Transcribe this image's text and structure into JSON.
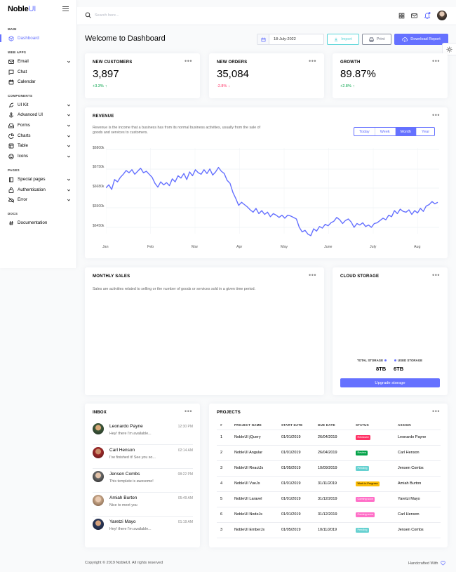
{
  "brand": {
    "name": "Noble",
    "suffix": "UI"
  },
  "sidebar": {
    "sections": {
      "main": "MAIN",
      "web_apps": "WEB APPS",
      "components": "COMPONENTS",
      "pages": "PAGES",
      "docs": "DOCS"
    },
    "items": {
      "dashboard": "Dashboard",
      "email": "Email",
      "chat": "Chat",
      "calendar": "Calendar",
      "ui_kit": "UI Kit",
      "advanced_ui": "Advanced UI",
      "forms": "Forms",
      "charts": "Charts",
      "table": "Table",
      "icons": "Icons",
      "special_pages": "Special pages",
      "authentication": "Authentication",
      "error": "Error",
      "documentation": "Documentation"
    }
  },
  "topbar": {
    "search_placeholder": "Search here..."
  },
  "header": {
    "title": "Welcome to Dashboard",
    "date": "18-July-2022",
    "import": "Import",
    "print": "Print",
    "download": "Download Report"
  },
  "stats": {
    "new_customers": {
      "title": "NEW CUSTOMERS",
      "value": "3,897",
      "delta": "+3.3%"
    },
    "new_orders": {
      "title": "NEW ORDERS",
      "value": "35,084",
      "delta": "-2.8%"
    },
    "growth": {
      "title": "GROWTH",
      "value": "89.87%",
      "delta": "+2.8%"
    }
  },
  "revenue": {
    "title": "REVENUE",
    "description_line1": "Revenue is the income that a business has from its normal business activities, usually from the sale of",
    "description_line2": "goods and services to customers.",
    "periods": {
      "today": "Today",
      "week": "Week",
      "month": "Month",
      "year": "Year"
    },
    "y_ticks": [
      "$6800k",
      "$6750k",
      "$6680k",
      "$6500k",
      "$6450k"
    ],
    "x_ticks": [
      "Jan",
      "Feb",
      "Mar",
      "Apr",
      "May",
      "June",
      "July",
      "Aug"
    ]
  },
  "chart_data": {
    "type": "line",
    "title": "REVENUE",
    "xlabel": "",
    "ylabel": "",
    "y_ticks": [
      "$6800k",
      "$6750k",
      "$6680k",
      "$6500k",
      "$6450k"
    ],
    "x_ticks": [
      "Jan",
      "Feb",
      "Mar",
      "Apr",
      "May",
      "June",
      "July",
      "Aug"
    ],
    "values": [
      0.66,
      0.7,
      0.64,
      0.77,
      0.74,
      0.8,
      0.84,
      0.89,
      0.86,
      0.9,
      0.84,
      0.88,
      0.92,
      0.86,
      0.88,
      0.84,
      0.8,
      0.72,
      0.67,
      0.74,
      0.7,
      0.73,
      0.69,
      0.78,
      0.74,
      0.82,
      0.79,
      0.85,
      0.77,
      0.87,
      0.82,
      0.9,
      0.86,
      0.84,
      0.9,
      0.85,
      0.91,
      0.83,
      0.87,
      0.93,
      0.88,
      0.85,
      0.76,
      0.72,
      0.6,
      0.52,
      0.43,
      0.47,
      0.44,
      0.41,
      0.37,
      0.34,
      0.39,
      0.32,
      0.36,
      0.31,
      0.34,
      0.28,
      0.32,
      0.3,
      0.27,
      0.3,
      0.26,
      0.3,
      0.29,
      0.27,
      0.25,
      0.14,
      0.08,
      0.1,
      0.05,
      0.03,
      0.12,
      0.09,
      0.15,
      0.13,
      0.18,
      0.16,
      0.2,
      0.22,
      0.27,
      0.24,
      0.19,
      0.23,
      0.25,
      0.21,
      0.14,
      0.19,
      0.17,
      0.2,
      0.15,
      0.17,
      0.14,
      0.19,
      0.2,
      0.23,
      0.26,
      0.24,
      0.3,
      0.28,
      0.36,
      0.32,
      0.38,
      0.35,
      0.34,
      0.37,
      0.31,
      0.36,
      0.33,
      0.39,
      0.35,
      0.42,
      0.44,
      0.48,
      0.45,
      0.47
    ],
    "ylim": [
      0,
      1
    ],
    "grid": true
  },
  "monthly_sales": {
    "title": "MONTHLY SALES",
    "description": "Sales are activities related to selling or the number of goods or services sold in a given time period."
  },
  "cloud_storage": {
    "title": "CLOUD STORAGE",
    "total_label": "TOTAL STORAGE",
    "used_label": "USED STORAGE",
    "total_value": "8TB",
    "used_value": "6TB",
    "button": "Upgrade storage"
  },
  "inbox": {
    "title": "INBOX",
    "messages": [
      {
        "name": "Leonardo Payne",
        "text": "Hey! there I'm available...",
        "time": "12:30 PM"
      },
      {
        "name": "Carl Henson",
        "text": "I've finished it! See you so...",
        "time": "02:14 AM"
      },
      {
        "name": "Jensen Combs",
        "text": "This template is awesome!",
        "time": "08:22 PM"
      },
      {
        "name": "Amiah Burton",
        "text": "Nice to meet you",
        "time": "05:49 AM"
      },
      {
        "name": "Yaretzi Mayo",
        "text": "Hey! there I'm available...",
        "time": "01:19 AM"
      }
    ]
  },
  "projects": {
    "title": "PROJECTS",
    "headers": [
      "#",
      "PROJECT NAME",
      "START DATE",
      "DUE DATE",
      "STATUS",
      "ASSIGN"
    ],
    "rows": [
      {
        "n": "1",
        "name": "NobleUI jQuery",
        "start": "01/01/2019",
        "due": "26/04/2019",
        "status": "Released",
        "assign": "Leonardo Payne"
      },
      {
        "n": "2",
        "name": "NobleUI Angular",
        "start": "01/01/2019",
        "due": "26/04/2019",
        "status": "Review",
        "assign": "Carl Henson"
      },
      {
        "n": "3",
        "name": "NobleUI ReactJs",
        "start": "01/05/2019",
        "due": "10/09/2019",
        "status": "Pending",
        "assign": "Jensen Combs"
      },
      {
        "n": "4",
        "name": "NobleUI VueJs",
        "start": "01/01/2019",
        "due": "31/11/2019",
        "status": "Work in Progress",
        "assign": "Amiah Burton"
      },
      {
        "n": "5",
        "name": "NobleUI Laravel",
        "start": "01/01/2019",
        "due": "31/12/2019",
        "status": "Coming soon",
        "assign": "Yaretzi Mayo"
      },
      {
        "n": "6",
        "name": "NobleUI NodeJs",
        "start": "01/01/2019",
        "due": "31/12/2019",
        "status": "Coming soon",
        "assign": "Carl Henson"
      },
      {
        "n": "3",
        "name": "NobleUI EmberJs",
        "start": "01/05/2019",
        "due": "10/11/2019",
        "status": "Pending",
        "assign": "Jensen Combs"
      }
    ]
  },
  "status_colors": {
    "Released": "#ff3366",
    "Review": "#05a34a",
    "Pending": "#66d1d1",
    "Work in Progress": "#fbbc06",
    "Coming soon": "#ff6ec7"
  },
  "colors": {
    "primary": "#6571ff",
    "success": "#05a34a",
    "danger": "#ff3366",
    "info": "#66d1d1",
    "warning": "#fbbc06"
  },
  "footer": {
    "copyright": "Copyright © 2019 NobleUI. All rights reserved",
    "handcrafted": "Handcrafted With"
  }
}
